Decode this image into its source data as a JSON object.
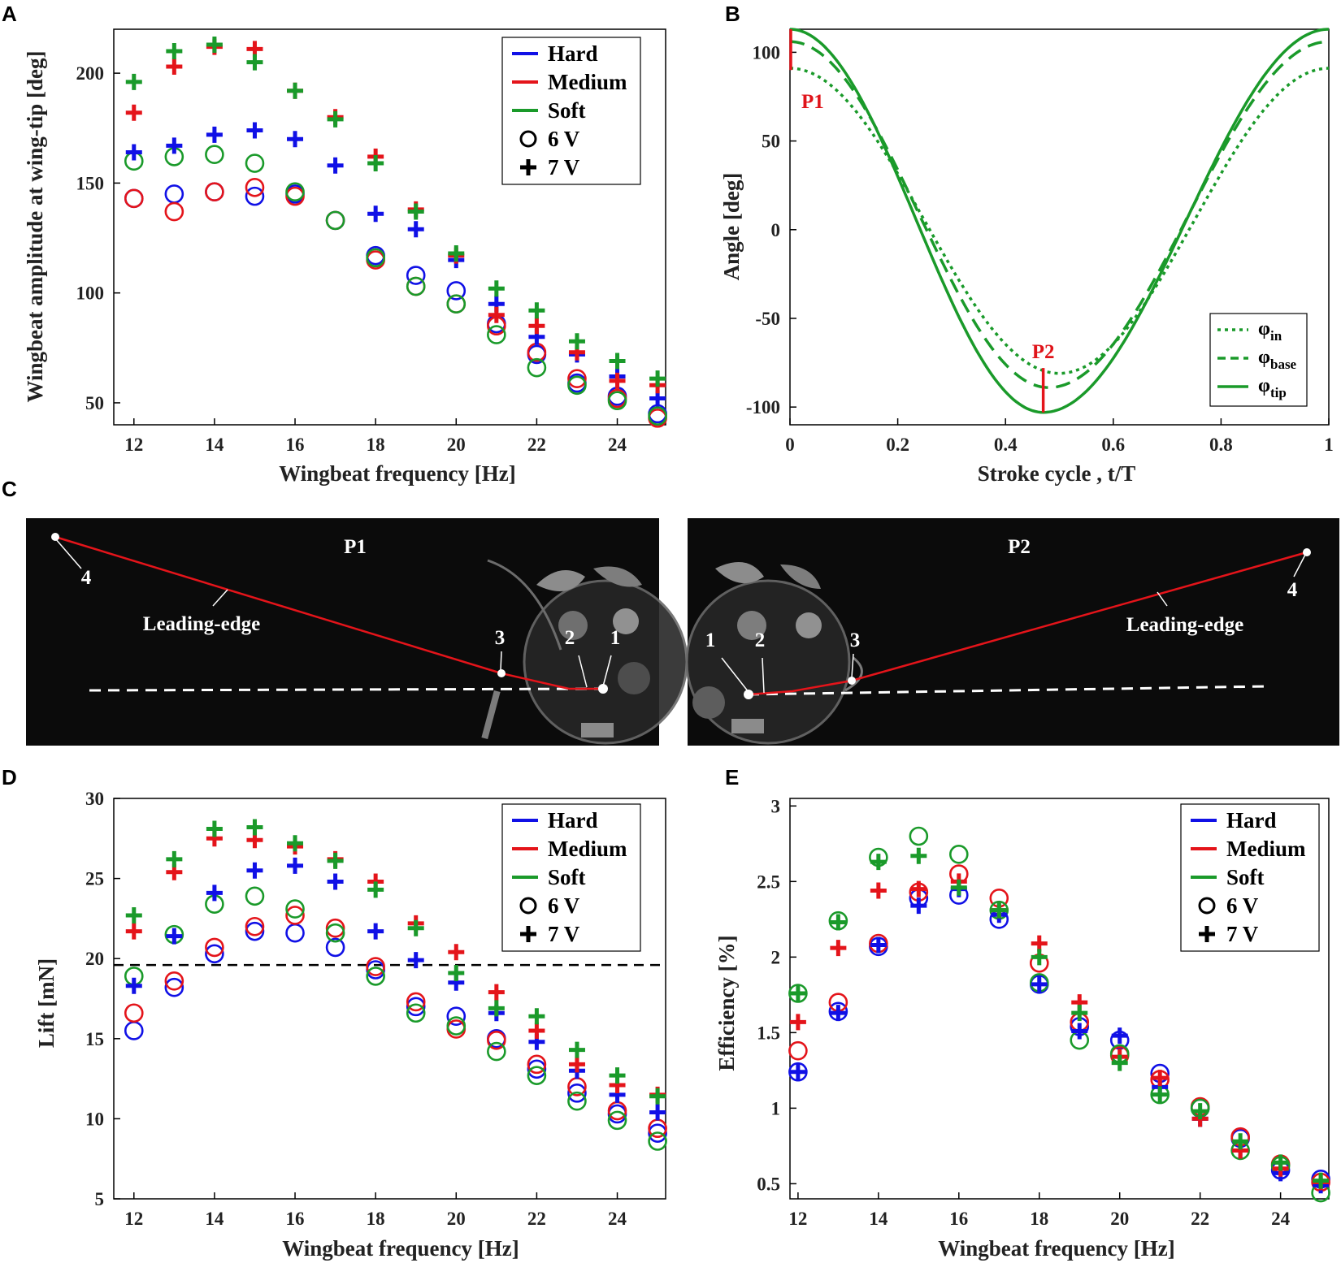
{
  "colors": {
    "Hard": "#1010e6",
    "Medium": "#e4141a",
    "Soft": "#1a9a2a"
  },
  "legend_materials": {
    "Hard": "Hard",
    "Medium": "Medium",
    "Soft": "Soft"
  },
  "legend_markers": {
    "v6": "6 V",
    "v7": "7 V"
  },
  "panel_letters": {
    "A": "A",
    "B": "B",
    "C": "C",
    "D": "D",
    "E": "E"
  },
  "chart_data": [
    {
      "panel": "A",
      "type": "scatter",
      "xlabel": "Wingbeat frequency [Hz]",
      "ylabel": "Wingbeat amplitude at wing-tip [deg]",
      "xlim": [
        11.5,
        25.2
      ],
      "ylim": [
        40,
        220
      ],
      "xticks": [
        12,
        14,
        16,
        18,
        20,
        22,
        24
      ],
      "yticks": [
        50,
        100,
        150,
        200
      ],
      "x": [
        12,
        13,
        14,
        15,
        16,
        17,
        18,
        19,
        20,
        21,
        22,
        23,
        24,
        25
      ],
      "series": [
        {
          "name": "Hard 6 V",
          "material": "Hard",
          "marker": "o",
          "values": [
            143,
            145,
            146,
            144,
            145,
            133,
            117,
            108,
            101,
            86,
            72,
            59,
            53,
            45
          ]
        },
        {
          "name": "Medium 6 V",
          "material": "Medium",
          "marker": "o",
          "values": [
            143,
            137,
            146,
            148,
            144,
            133,
            115,
            103,
            95,
            85,
            73,
            61,
            52,
            43
          ]
        },
        {
          "name": "Soft 6 V",
          "material": "Soft",
          "marker": "o",
          "values": [
            160,
            162,
            163,
            159,
            146,
            133,
            116,
            103,
            95,
            81,
            66,
            58,
            51,
            44
          ]
        },
        {
          "name": "Hard 7 V",
          "material": "Hard",
          "marker": "+",
          "values": [
            164,
            167,
            172,
            174,
            170,
            158,
            136,
            129,
            115,
            95,
            80,
            72,
            62,
            52
          ]
        },
        {
          "name": "Medium 7 V",
          "material": "Medium",
          "marker": "+",
          "values": [
            182,
            203,
            212,
            211,
            192,
            180,
            162,
            138,
            117,
            90,
            85,
            73,
            60,
            58
          ]
        },
        {
          "name": "Soft 7 V",
          "material": "Soft",
          "marker": "+",
          "values": [
            196,
            210,
            213,
            205,
            192,
            179,
            159,
            137,
            118,
            102,
            92,
            78,
            69,
            61
          ]
        }
      ]
    },
    {
      "panel": "B",
      "type": "line",
      "xlabel": "Stroke cycle , t/T",
      "ylabel": "Angle [deg]",
      "xlim": [
        0,
        1
      ],
      "ylim": [
        -110,
        113
      ],
      "xticks": [
        "0",
        "0.2",
        "0.4",
        "0.6",
        "0.8",
        "1"
      ],
      "yticks": [
        -100,
        -50,
        0,
        50,
        100
      ],
      "legend": [
        {
          "label": "φ",
          "sub": "in",
          "style": "dotted"
        },
        {
          "label": "φ",
          "sub": "base",
          "style": "dashed"
        },
        {
          "label": "φ",
          "sub": "tip",
          "style": "solid"
        }
      ],
      "curves": {
        "in": {
          "upper": 91,
          "lower": -81,
          "t_min": 0.5
        },
        "base": {
          "upper": 106,
          "lower": -89,
          "t_min": 0.48
        },
        "tip": {
          "upper": 113,
          "lower": -103,
          "t_min": 0.47
        }
      },
      "markers": [
        {
          "label": "P1",
          "t": 0,
          "from": 90,
          "to": 113
        },
        {
          "label": "P2",
          "t": 0.47,
          "from": -78,
          "to": -103
        }
      ]
    },
    {
      "panel": "D",
      "type": "scatter",
      "xlabel": "Wingbeat frequency [Hz]",
      "ylabel": "Lift [mN]",
      "xlim": [
        11.5,
        25.2
      ],
      "ylim": [
        5,
        30
      ],
      "xticks": [
        12,
        14,
        16,
        18,
        20,
        22,
        24
      ],
      "yticks": [
        5,
        10,
        15,
        20,
        25,
        30
      ],
      "reference_line": 19.6,
      "x": [
        12,
        13,
        14,
        15,
        16,
        17,
        18,
        19,
        20,
        21,
        22,
        23,
        24,
        25
      ],
      "series": [
        {
          "name": "Hard 6 V",
          "material": "Hard",
          "marker": "o",
          "values": [
            15.5,
            18.2,
            20.3,
            21.7,
            21.6,
            20.7,
            19.3,
            17.0,
            16.4,
            15.0,
            13.1,
            11.6,
            10.3,
            9.1
          ]
        },
        {
          "name": "Medium 6 V",
          "material": "Medium",
          "marker": "o",
          "values": [
            16.6,
            18.6,
            20.7,
            22.0,
            22.7,
            21.9,
            19.5,
            17.3,
            15.6,
            14.9,
            13.4,
            12.0,
            10.5,
            9.4
          ]
        },
        {
          "name": "Soft 6 V",
          "material": "Soft",
          "marker": "o",
          "values": [
            18.9,
            21.5,
            23.4,
            23.9,
            23.1,
            21.6,
            18.9,
            16.6,
            15.8,
            14.2,
            12.7,
            11.1,
            9.9,
            8.6
          ]
        },
        {
          "name": "Hard 7 V",
          "material": "Hard",
          "marker": "+",
          "values": [
            18.3,
            21.4,
            24.1,
            25.5,
            25.8,
            24.8,
            21.7,
            19.9,
            18.5,
            16.6,
            14.8,
            13.0,
            11.5,
            10.4
          ]
        },
        {
          "name": "Medium 7 V",
          "material": "Medium",
          "marker": "+",
          "values": [
            21.7,
            25.4,
            27.5,
            27.4,
            27.0,
            26.2,
            24.8,
            22.2,
            20.4,
            17.9,
            15.5,
            13.4,
            12.1,
            11.5
          ]
        },
        {
          "name": "Soft 7 V",
          "material": "Soft",
          "marker": "+",
          "values": [
            22.7,
            26.2,
            28.1,
            28.2,
            27.2,
            26.1,
            24.3,
            21.9,
            19.1,
            16.9,
            16.4,
            14.3,
            12.7,
            11.4
          ]
        }
      ]
    },
    {
      "panel": "E",
      "type": "scatter",
      "xlabel": "Wingbeat frequency [Hz]",
      "ylabel": "Efficiency [%]",
      "xlim": [
        11.8,
        25.2
      ],
      "ylim": [
        0.4,
        3.05
      ],
      "xticks": [
        12,
        14,
        16,
        18,
        20,
        22,
        24
      ],
      "yticks": [
        "0.5",
        "1",
        "1.5",
        "2",
        "2.5",
        "3"
      ],
      "x": [
        12,
        13,
        14,
        15,
        16,
        17,
        18,
        19,
        20,
        21,
        22,
        23,
        24,
        25
      ],
      "series": [
        {
          "name": "Hard 6 V",
          "material": "Hard",
          "marker": "o",
          "values": [
            1.24,
            1.64,
            2.07,
            2.39,
            2.41,
            2.25,
            1.82,
            1.54,
            1.45,
            1.23,
            1.0,
            0.8,
            0.59,
            0.53
          ]
        },
        {
          "name": "Medium 6 V",
          "material": "Medium",
          "marker": "o",
          "values": [
            1.38,
            1.7,
            2.09,
            2.43,
            2.55,
            2.39,
            1.96,
            1.57,
            1.35,
            1.19,
            1.01,
            0.81,
            0.63,
            0.51
          ]
        },
        {
          "name": "Soft 6 V",
          "material": "Soft",
          "marker": "o",
          "values": [
            1.76,
            2.24,
            2.66,
            2.8,
            2.68,
            2.31,
            1.83,
            1.45,
            1.36,
            1.09,
            1.0,
            0.72,
            0.62,
            0.44
          ]
        },
        {
          "name": "Hard 7 V",
          "material": "Hard",
          "marker": "+",
          "values": [
            1.24,
            1.63,
            2.08,
            2.34,
            2.45,
            2.28,
            1.82,
            1.51,
            1.48,
            1.14,
            0.93,
            0.72,
            0.57,
            0.49
          ]
        },
        {
          "name": "Medium 7 V",
          "material": "Medium",
          "marker": "+",
          "values": [
            1.57,
            2.06,
            2.44,
            2.45,
            2.5,
            2.31,
            2.09,
            1.7,
            1.34,
            1.2,
            0.93,
            0.72,
            0.6,
            0.51
          ]
        },
        {
          "name": "Soft 7 V",
          "material": "Soft",
          "marker": "+",
          "values": [
            1.76,
            2.23,
            2.63,
            2.67,
            2.46,
            2.31,
            2.0,
            1.63,
            1.3,
            1.09,
            0.98,
            0.78,
            0.64,
            0.52
          ]
        }
      ]
    }
  ],
  "photos": {
    "P1": {
      "title": "P1",
      "edge_label": "Leading-edge",
      "point_labels": [
        "1",
        "2",
        "3",
        "4"
      ]
    },
    "P2": {
      "title": "P2",
      "edge_label": "Leading-edge",
      "point_labels": [
        "1",
        "2",
        "3",
        "4"
      ]
    }
  }
}
